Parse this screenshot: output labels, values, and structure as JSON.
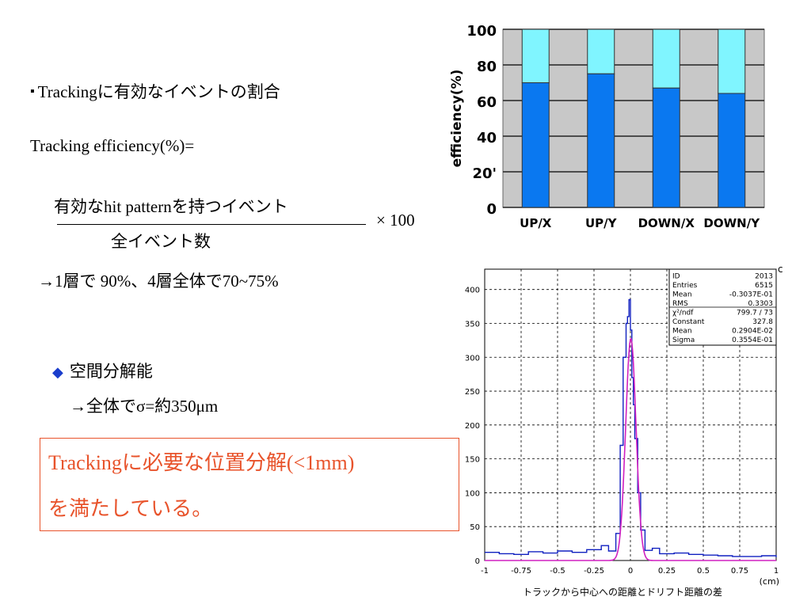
{
  "text": {
    "bullet": "Trackingに有効なイベントの割合",
    "formula_label": "Tracking efficiency(%)=",
    "numerator": "有効なhit patternを持つイベント",
    "denominator": "全イベント数",
    "multiplier": "× 100",
    "result": "→1層で 90%、4層全体で70~75%",
    "resolution_title": "空間分解能",
    "resolution_value": "→全体でσ=約350μm",
    "conclusion_line1": "Trackingに必要な位置分解(<1mm)",
    "conclusion_line2": "を満たしている。"
  },
  "chart_data": [
    {
      "type": "bar",
      "categories": [
        "UP/X",
        "UP/Y",
        "DOWN/X",
        "DOWN/Y"
      ],
      "series": [
        {
          "values": [
            70,
            75,
            67,
            64
          ],
          "color": "#0a78f0"
        },
        {
          "values": [
            100,
            100,
            100,
            100
          ],
          "color": "#80f5ff"
        }
      ],
      "ylabel": "efficiency(%)",
      "ylim": [
        0,
        100
      ],
      "yticks": [
        0,
        20,
        40,
        60,
        80,
        100
      ],
      "yticklabels": [
        "0",
        "20'",
        "40",
        "60",
        "80",
        "100"
      ],
      "grid": true,
      "background": "#c8c8c8"
    },
    {
      "type": "line",
      "xlabel": "トラックから中心への距離とドリフト距離の差",
      "xunit": "(cm)",
      "xlim": [
        -1,
        1
      ],
      "ylim": [
        0,
        430
      ],
      "xticks": [
        -1,
        -0.75,
        -0.5,
        -0.25,
        0,
        0.25,
        0.5,
        0.75,
        1
      ],
      "xticklabels": [
        "-1",
        "-0.75",
        "-0.5",
        "-0.25",
        "0",
        "0.25",
        "0.5",
        "0.75",
        "1"
      ],
      "yticks": [
        0,
        50,
        100,
        150,
        200,
        250,
        300,
        350,
        400
      ],
      "grid": true,
      "corner_label": "c",
      "stats": [
        {
          "key": "ID",
          "value": "2013"
        },
        {
          "key": "Entries",
          "value": "6515"
        },
        {
          "key": "Mean",
          "value": "-0.3037E-01"
        },
        {
          "key": "RMS",
          "value": "0.3303"
        },
        {
          "key": "χ²/ndf",
          "value": "799.7  /  73"
        },
        {
          "key": "Constant",
          "value": "327.8"
        },
        {
          "key": "Mean",
          "value": "0.2904E-02"
        },
        {
          "key": "Sigma",
          "value": "0.3554E-01"
        }
      ],
      "series": [
        {
          "kind": "histogram",
          "color": "#1020c0",
          "x": [
            -1.0,
            -0.9,
            -0.8,
            -0.7,
            -0.6,
            -0.5,
            -0.4,
            -0.3,
            -0.2,
            -0.15,
            -0.1,
            -0.07,
            -0.05,
            -0.03,
            -0.02,
            -0.01,
            0.0,
            0.01,
            0.02,
            0.03,
            0.05,
            0.07,
            0.1,
            0.15,
            0.2,
            0.3,
            0.4,
            0.5,
            0.6,
            0.7,
            0.8,
            0.9,
            1.0
          ],
          "y": [
            12,
            10,
            9,
            13,
            11,
            14,
            12,
            16,
            22,
            14,
            40,
            170,
            300,
            350,
            360,
            385,
            340,
            270,
            230,
            180,
            100,
            45,
            15,
            18,
            10,
            11,
            9,
            8,
            7,
            6,
            6,
            7,
            5
          ]
        },
        {
          "kind": "gaussian_fit",
          "color": "#d020c0",
          "constant": 327.8,
          "mean": 0.002904,
          "sigma": 0.03554
        }
      ]
    }
  ]
}
